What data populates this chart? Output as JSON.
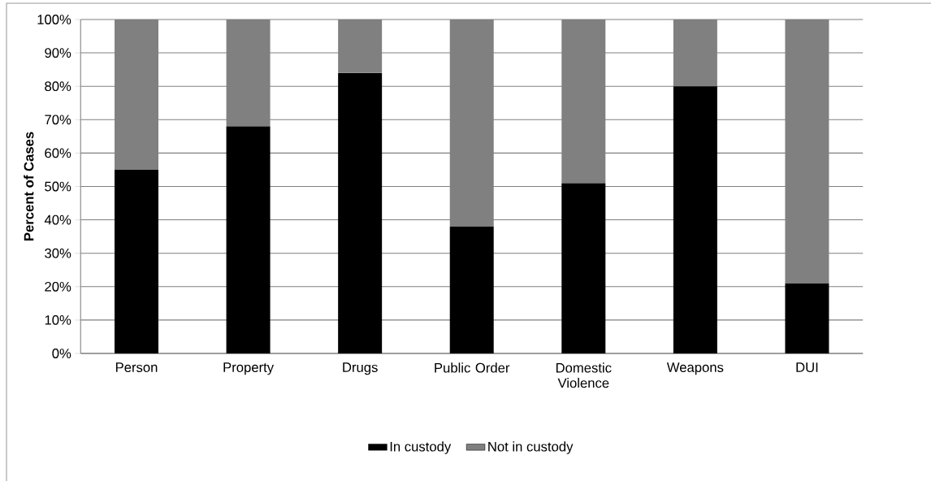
{
  "chart_data": {
    "type": "bar",
    "stacked": true,
    "ylabel": "Percent of Cases",
    "categories": [
      "Person",
      "Property",
      "Drugs",
      "Public Order",
      "Domestic Violence",
      "Weapons",
      "DUI"
    ],
    "series": [
      {
        "name": "In custody",
        "color": "#000000",
        "values": [
          55,
          68,
          84,
          38,
          51,
          80,
          21
        ]
      },
      {
        "name": "Not in custody",
        "color": "#808080",
        "values": [
          45,
          32,
          16,
          62,
          49,
          20,
          79
        ]
      }
    ],
    "ylim": [
      0,
      100
    ],
    "yticks": [
      {
        "value": 0,
        "label": "0%"
      },
      {
        "value": 10,
        "label": "10%"
      },
      {
        "value": 20,
        "label": "20%"
      },
      {
        "value": 30,
        "label": "30%"
      },
      {
        "value": 40,
        "label": "40%"
      },
      {
        "value": 50,
        "label": "50%"
      },
      {
        "value": 60,
        "label": "60%"
      },
      {
        "value": 70,
        "label": "70%"
      },
      {
        "value": 80,
        "label": "80%"
      },
      {
        "value": 90,
        "label": "90%"
      },
      {
        "value": 100,
        "label": "100%"
      }
    ],
    "grid": "y",
    "legend": "bottom"
  }
}
